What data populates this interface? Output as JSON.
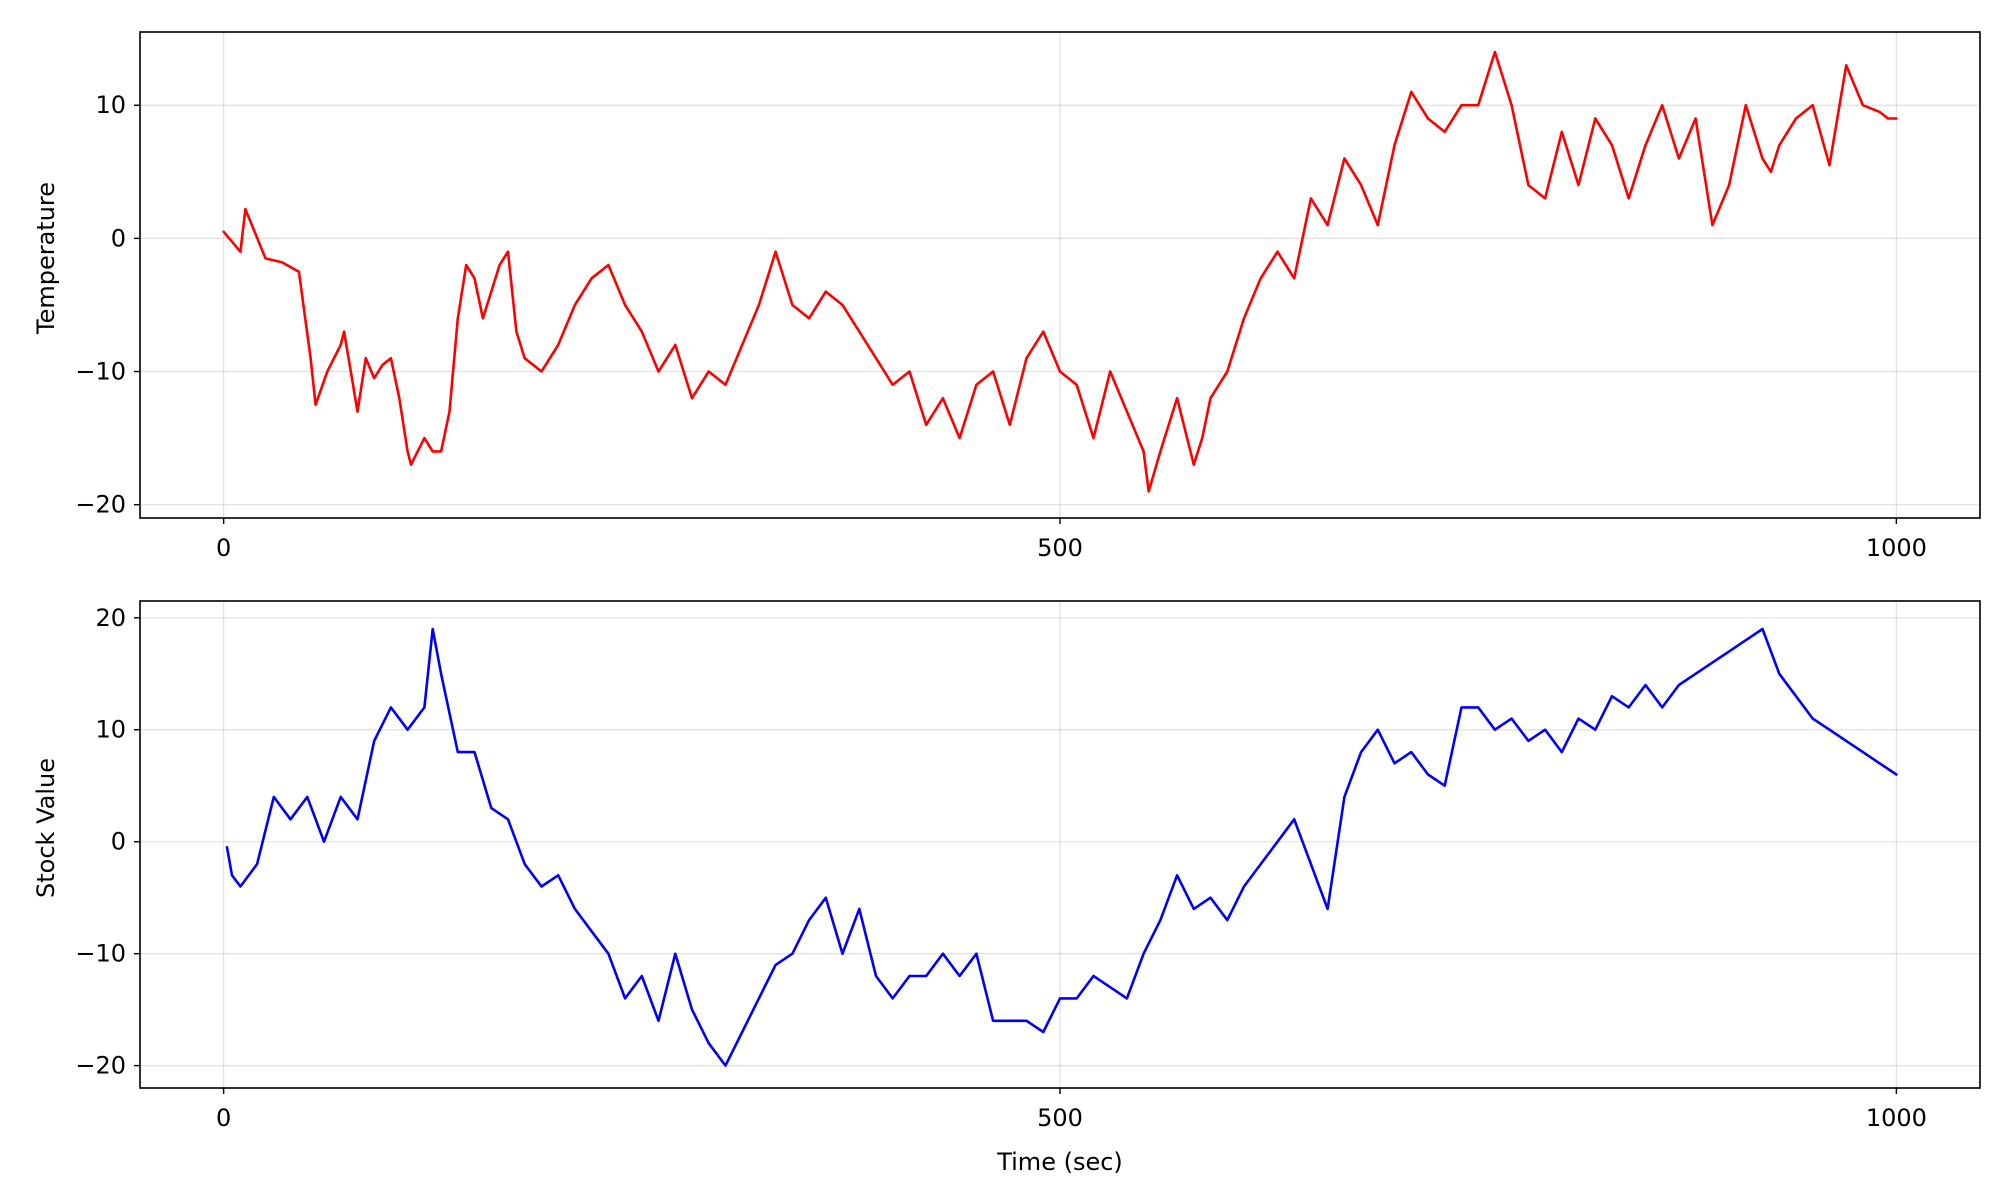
{
  "chart_data": [
    {
      "type": "line",
      "title": "",
      "xlabel": "",
      "ylabel": "Temperature",
      "xlim": [
        -50,
        1050
      ],
      "ylim": [
        -21,
        15.5
      ],
      "x_ticks": [
        0,
        500,
        1000
      ],
      "y_ticks": [
        -20,
        -10,
        0,
        10
      ],
      "x_tick_labels": [
        "0",
        "500",
        "1000"
      ],
      "y_tick_labels": [
        "−20",
        "−10",
        "0",
        "10"
      ],
      "grid": true,
      "series": [
        {
          "color": "#ff0000",
          "x": [
            0,
            10,
            13,
            25,
            35,
            45,
            52,
            55,
            62,
            70,
            72,
            80,
            85,
            90,
            95,
            100,
            105,
            110,
            112,
            120,
            125,
            130,
            135,
            140,
            145,
            150,
            155,
            160,
            165,
            170,
            175,
            180,
            190,
            200,
            210,
            220,
            230,
            240,
            250,
            260,
            270,
            280,
            290,
            300,
            310,
            320,
            325,
            330,
            340,
            350,
            360,
            370,
            380,
            390,
            400,
            410,
            420,
            430,
            440,
            450,
            460,
            470,
            480,
            490,
            500,
            510,
            520,
            530,
            540,
            550,
            553,
            560,
            570,
            580,
            585,
            590,
            600,
            610,
            620,
            630,
            640,
            650,
            660,
            670,
            680,
            690,
            700,
            710,
            720,
            730,
            740,
            750,
            760,
            765,
            770,
            780,
            790,
            800,
            810,
            820,
            830,
            840,
            850,
            860,
            870,
            880,
            890,
            900,
            910,
            920,
            925,
            930,
            940,
            950,
            960,
            970,
            975,
            980,
            990,
            995,
            1000
          ],
          "y": [
            0.5,
            -1,
            2.2,
            -1.5,
            -1.8,
            -2.5,
            -9,
            -12.5,
            -10,
            -8,
            -7,
            -13,
            -9,
            -10.5,
            -9.5,
            -9,
            -12,
            -16,
            -17,
            -15,
            -16,
            -16,
            -13,
            -6,
            -2,
            -3,
            -6,
            -4,
            -2,
            -1,
            -7,
            -9,
            -10,
            -8,
            -5,
            -3,
            -2,
            -5,
            -7,
            -10,
            -8,
            -12,
            -10,
            -11,
            -8,
            -5,
            -3,
            -1,
            -5,
            -6,
            -4,
            -5,
            -7,
            -9,
            -11,
            -10,
            -14,
            -12,
            -15,
            -11,
            -10,
            -14,
            -9,
            -7,
            -10,
            -11,
            -15,
            -10,
            -13,
            -16,
            -19,
            -16,
            -12,
            -17,
            -15,
            -12,
            -10,
            -6,
            -3,
            -1,
            -3,
            3,
            1,
            6,
            4,
            1,
            7,
            11,
            9,
            8,
            10,
            10,
            14,
            12,
            10,
            4,
            3,
            8,
            4,
            9,
            7,
            3,
            7,
            10,
            6,
            9,
            1,
            4,
            10,
            6,
            5,
            7,
            9,
            10,
            5.5,
            13,
            11.5,
            10,
            9.5,
            9,
            9
          ]
        }
      ]
    },
    {
      "type": "line",
      "title": "",
      "xlabel": "Time (sec)",
      "ylabel": "Stock Value",
      "xlim": [
        -50,
        1050
      ],
      "ylim": [
        -22,
        21.5
      ],
      "x_ticks": [
        0,
        500,
        1000
      ],
      "y_ticks": [
        -20,
        -10,
        0,
        10,
        20
      ],
      "x_tick_labels": [
        "0",
        "500",
        "1000"
      ],
      "y_tick_labels": [
        "−20",
        "−10",
        "0",
        "10",
        "20"
      ],
      "grid": true,
      "series": [
        {
          "color": "#0000ff",
          "x": [
            2,
            5,
            10,
            20,
            30,
            40,
            50,
            60,
            70,
            80,
            90,
            100,
            110,
            120,
            125,
            130,
            140,
            150,
            160,
            170,
            180,
            190,
            200,
            210,
            220,
            230,
            240,
            250,
            260,
            270,
            280,
            290,
            300,
            310,
            320,
            330,
            340,
            350,
            360,
            370,
            380,
            390,
            400,
            410,
            420,
            430,
            440,
            450,
            460,
            470,
            480,
            490,
            500,
            510,
            520,
            530,
            540,
            550,
            560,
            570,
            580,
            590,
            600,
            610,
            620,
            630,
            640,
            650,
            660,
            670,
            680,
            690,
            700,
            710,
            720,
            730,
            740,
            750,
            760,
            770,
            780,
            790,
            800,
            810,
            820,
            830,
            840,
            850,
            860,
            870,
            880,
            890,
            900,
            910,
            920,
            930,
            940,
            950,
            960,
            970,
            980,
            990,
            1000
          ],
          "y": [
            -0.5,
            -3,
            -4,
            -2,
            4,
            2,
            4,
            0,
            4,
            2,
            9,
            12,
            10,
            12,
            19,
            15,
            8,
            8,
            3,
            2,
            -2,
            -4,
            -3,
            -6,
            -8,
            -10,
            -14,
            -12,
            -16,
            -10,
            -15,
            -18,
            -20,
            -17,
            -14,
            -11,
            -10,
            -7,
            -5,
            -10,
            -6,
            -12,
            -14,
            -12,
            -12,
            -10,
            -12,
            -10,
            -16,
            -16,
            -16,
            -17,
            -14,
            -14,
            -12,
            -13,
            -14,
            -10,
            -7,
            -3,
            -6,
            -5,
            -7,
            -4,
            -2,
            0,
            2,
            -2,
            -6,
            4,
            8,
            10,
            7,
            8,
            6,
            5,
            12,
            12,
            10,
            11,
            9,
            10,
            8,
            11,
            10,
            13,
            12,
            14,
            12,
            14,
            15,
            16,
            17,
            18,
            19,
            15,
            13,
            11,
            10,
            9,
            8,
            7,
            6
          ]
        }
      ]
    }
  ]
}
